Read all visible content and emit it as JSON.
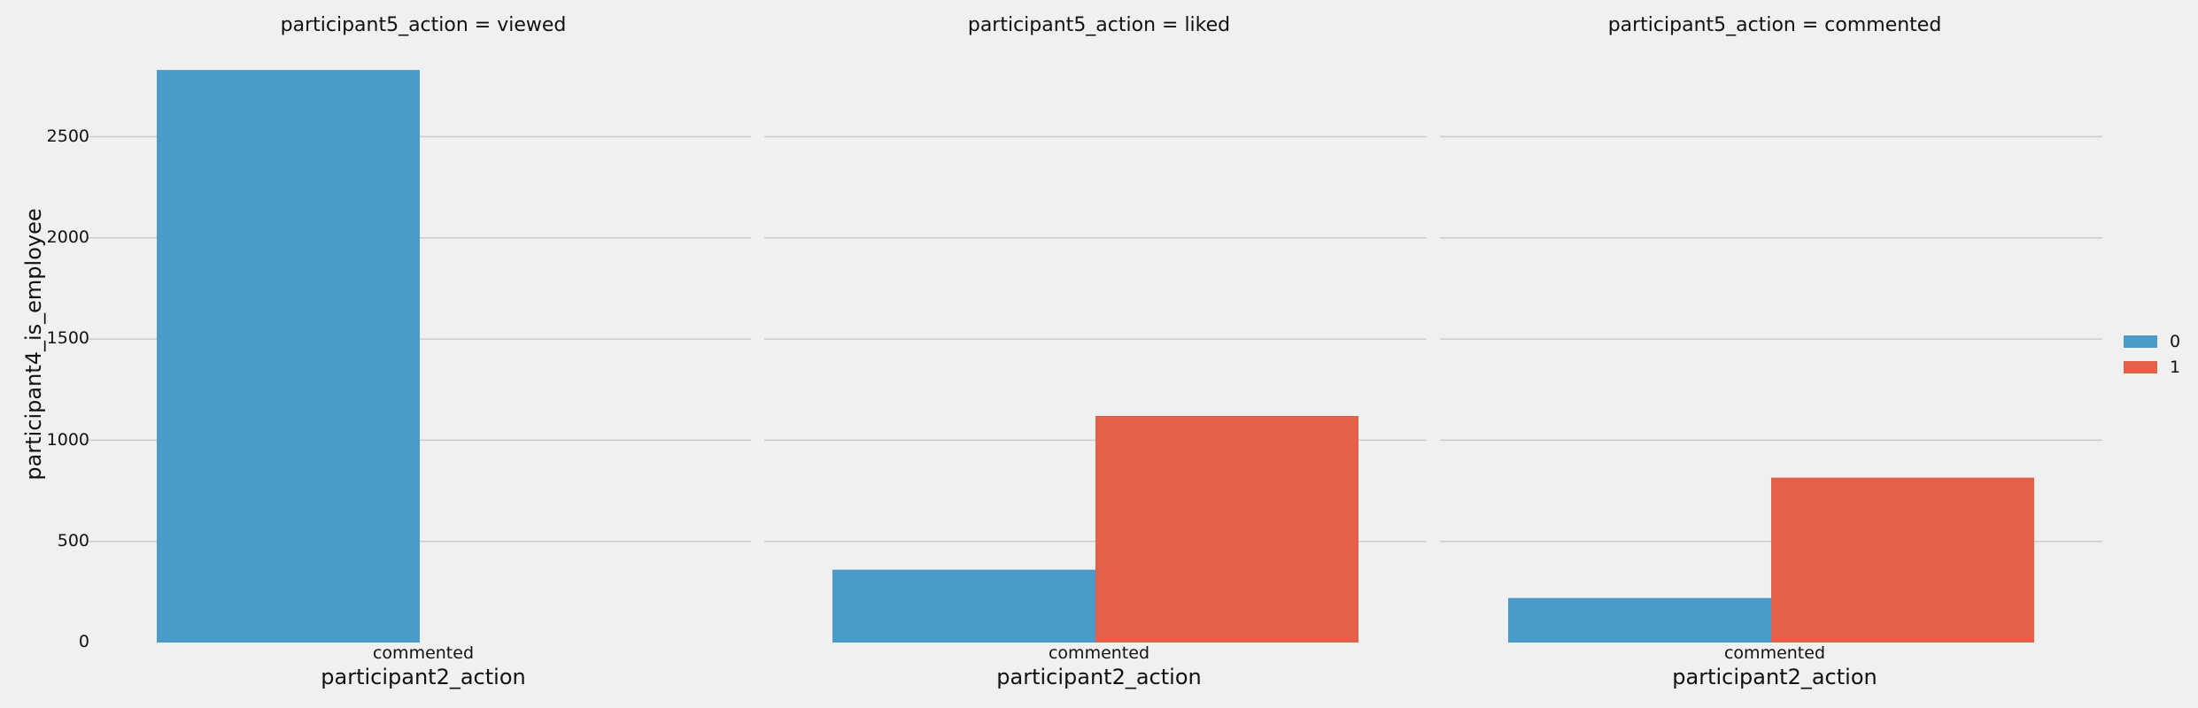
{
  "chart_data": {
    "type": "bar",
    "ylabel": "participant4_is_employee",
    "yticks": [
      "0",
      "500",
      "1000",
      "1500",
      "2000",
      "2500"
    ],
    "ylim": [
      0,
      2900
    ],
    "grid": "horizontal",
    "legend": {
      "placement": "right",
      "entries": [
        {
          "label": "0",
          "color": "#4a9bc7"
        },
        {
          "label": "1",
          "color": "#e3604a"
        }
      ]
    },
    "panels": [
      {
        "title": "participant5_action = viewed",
        "xlabel": "participant2_action",
        "categories": [
          "commented"
        ],
        "series": [
          {
            "name": "0",
            "values": [
              2830
            ]
          },
          {
            "name": "1",
            "values": [
              0
            ]
          }
        ]
      },
      {
        "title": "participant5_action = liked",
        "xlabel": "participant2_action",
        "categories": [
          "commented"
        ],
        "series": [
          {
            "name": "0",
            "values": [
              360
            ]
          },
          {
            "name": "1",
            "values": [
              1120
            ]
          }
        ]
      },
      {
        "title": "participant5_action = commented",
        "xlabel": "participant2_action",
        "categories": [
          "commented"
        ],
        "series": [
          {
            "name": "0",
            "values": [
              220
            ]
          },
          {
            "name": "1",
            "values": [
              815
            ]
          }
        ]
      }
    ]
  }
}
